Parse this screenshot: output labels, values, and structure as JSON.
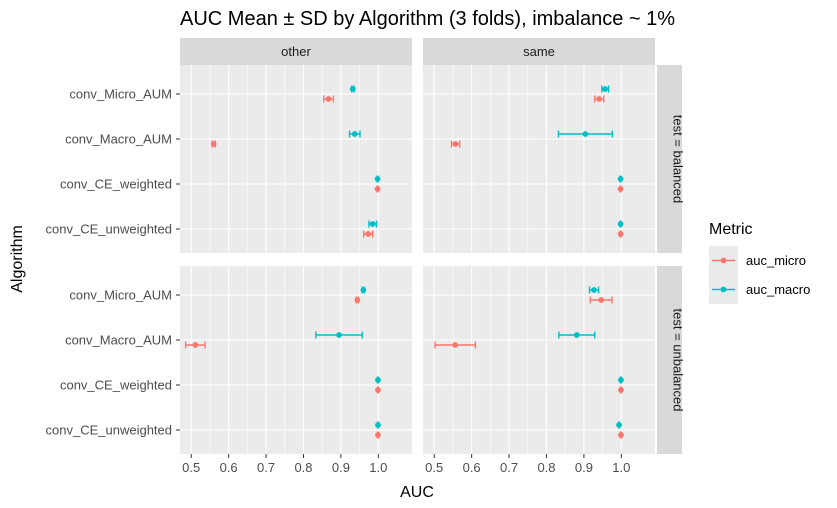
{
  "chart_data": {
    "type": "scatter",
    "title": "AUC Mean ± SD by Algorithm (3 folds), imbalance ~ 1%",
    "xlabel": "AUC",
    "ylabel": "Algorithm",
    "xlim": [
      0.47,
      1.09
    ],
    "x_ticks": [
      "0.5",
      "0.6",
      "0.7",
      "0.8",
      "0.9",
      "1.0"
    ],
    "categories": [
      "conv_Micro_AUM",
      "conv_Macro_AUM",
      "conv_CE_weighted",
      "conv_CE_unweighted"
    ],
    "facet_columns": [
      "other",
      "same"
    ],
    "facet_rows": [
      "test = balanced",
      "test = unbalanced"
    ],
    "legend": {
      "title": "Metric",
      "position": "right",
      "items": [
        {
          "label": "auc_micro",
          "color": "#F8766D"
        },
        {
          "label": "auc_macro",
          "color": "#00BFC4"
        }
      ]
    },
    "series": [
      {
        "name": "auc_micro",
        "color": "#F8766D",
        "points": [
          {
            "row": "test = balanced",
            "col": "other",
            "algorithm": "conv_Micro_AUM",
            "mean": 0.867,
            "sd": 0.013
          },
          {
            "row": "test = balanced",
            "col": "other",
            "algorithm": "conv_Macro_AUM",
            "mean": 0.56,
            "sd": 0.004
          },
          {
            "row": "test = balanced",
            "col": "other",
            "algorithm": "conv_CE_weighted",
            "mean": 0.998,
            "sd": 0.001
          },
          {
            "row": "test = balanced",
            "col": "other",
            "algorithm": "conv_CE_unweighted",
            "mean": 0.973,
            "sd": 0.012
          },
          {
            "row": "test = balanced",
            "col": "same",
            "algorithm": "conv_Micro_AUM",
            "mean": 0.941,
            "sd": 0.012
          },
          {
            "row": "test = balanced",
            "col": "same",
            "algorithm": "conv_Macro_AUM",
            "mean": 0.557,
            "sd": 0.011
          },
          {
            "row": "test = balanced",
            "col": "same",
            "algorithm": "conv_CE_weighted",
            "mean": 0.998,
            "sd": 0.001
          },
          {
            "row": "test = balanced",
            "col": "same",
            "algorithm": "conv_CE_unweighted",
            "mean": 0.998,
            "sd": 0.001
          },
          {
            "row": "test = unbalanced",
            "col": "other",
            "algorithm": "conv_Micro_AUM",
            "mean": 0.944,
            "sd": 0.003
          },
          {
            "row": "test = unbalanced",
            "col": "other",
            "algorithm": "conv_Macro_AUM",
            "mean": 0.511,
            "sd": 0.026
          },
          {
            "row": "test = unbalanced",
            "col": "other",
            "algorithm": "conv_CE_weighted",
            "mean": 0.999,
            "sd": 0.001
          },
          {
            "row": "test = unbalanced",
            "col": "other",
            "algorithm": "conv_CE_unweighted",
            "mean": 0.999,
            "sd": 0.001
          },
          {
            "row": "test = unbalanced",
            "col": "same",
            "algorithm": "conv_Micro_AUM",
            "mean": 0.946,
            "sd": 0.029
          },
          {
            "row": "test = unbalanced",
            "col": "same",
            "algorithm": "conv_Macro_AUM",
            "mean": 0.556,
            "sd": 0.054
          },
          {
            "row": "test = unbalanced",
            "col": "same",
            "algorithm": "conv_CE_weighted",
            "mean": 0.999,
            "sd": 0.001
          },
          {
            "row": "test = unbalanced",
            "col": "same",
            "algorithm": "conv_CE_unweighted",
            "mean": 0.999,
            "sd": 0.001
          }
        ]
      },
      {
        "name": "auc_macro",
        "color": "#00BFC4",
        "points": [
          {
            "row": "test = balanced",
            "col": "other",
            "algorithm": "conv_Micro_AUM",
            "mean": 0.932,
            "sd": 0.003
          },
          {
            "row": "test = balanced",
            "col": "other",
            "algorithm": "conv_Macro_AUM",
            "mean": 0.937,
            "sd": 0.014
          },
          {
            "row": "test = balanced",
            "col": "other",
            "algorithm": "conv_CE_weighted",
            "mean": 0.998,
            "sd": 0.001
          },
          {
            "row": "test = balanced",
            "col": "other",
            "algorithm": "conv_CE_unweighted",
            "mean": 0.985,
            "sd": 0.01
          },
          {
            "row": "test = balanced",
            "col": "same",
            "algorithm": "conv_Micro_AUM",
            "mean": 0.957,
            "sd": 0.009
          },
          {
            "row": "test = balanced",
            "col": "same",
            "algorithm": "conv_Macro_AUM",
            "mean": 0.904,
            "sd": 0.072
          },
          {
            "row": "test = balanced",
            "col": "same",
            "algorithm": "conv_CE_weighted",
            "mean": 0.998,
            "sd": 0.001
          },
          {
            "row": "test = balanced",
            "col": "same",
            "algorithm": "conv_CE_unweighted",
            "mean": 0.998,
            "sd": 0.001
          },
          {
            "row": "test = unbalanced",
            "col": "other",
            "algorithm": "conv_Micro_AUM",
            "mean": 0.96,
            "sd": 0.003
          },
          {
            "row": "test = unbalanced",
            "col": "other",
            "algorithm": "conv_Macro_AUM",
            "mean": 0.895,
            "sd": 0.062
          },
          {
            "row": "test = unbalanced",
            "col": "other",
            "algorithm": "conv_CE_weighted",
            "mean": 0.999,
            "sd": 0.001
          },
          {
            "row": "test = unbalanced",
            "col": "other",
            "algorithm": "conv_CE_unweighted",
            "mean": 0.999,
            "sd": 0.001
          },
          {
            "row": "test = unbalanced",
            "col": "same",
            "algorithm": "conv_Micro_AUM",
            "mean": 0.927,
            "sd": 0.012
          },
          {
            "row": "test = unbalanced",
            "col": "same",
            "algorithm": "conv_Macro_AUM",
            "mean": 0.881,
            "sd": 0.048
          },
          {
            "row": "test = unbalanced",
            "col": "same",
            "algorithm": "conv_CE_weighted",
            "mean": 0.999,
            "sd": 0.001
          },
          {
            "row": "test = unbalanced",
            "col": "same",
            "algorithm": "conv_CE_unweighted",
            "mean": 0.994,
            "sd": 0.001
          }
        ]
      }
    ]
  }
}
